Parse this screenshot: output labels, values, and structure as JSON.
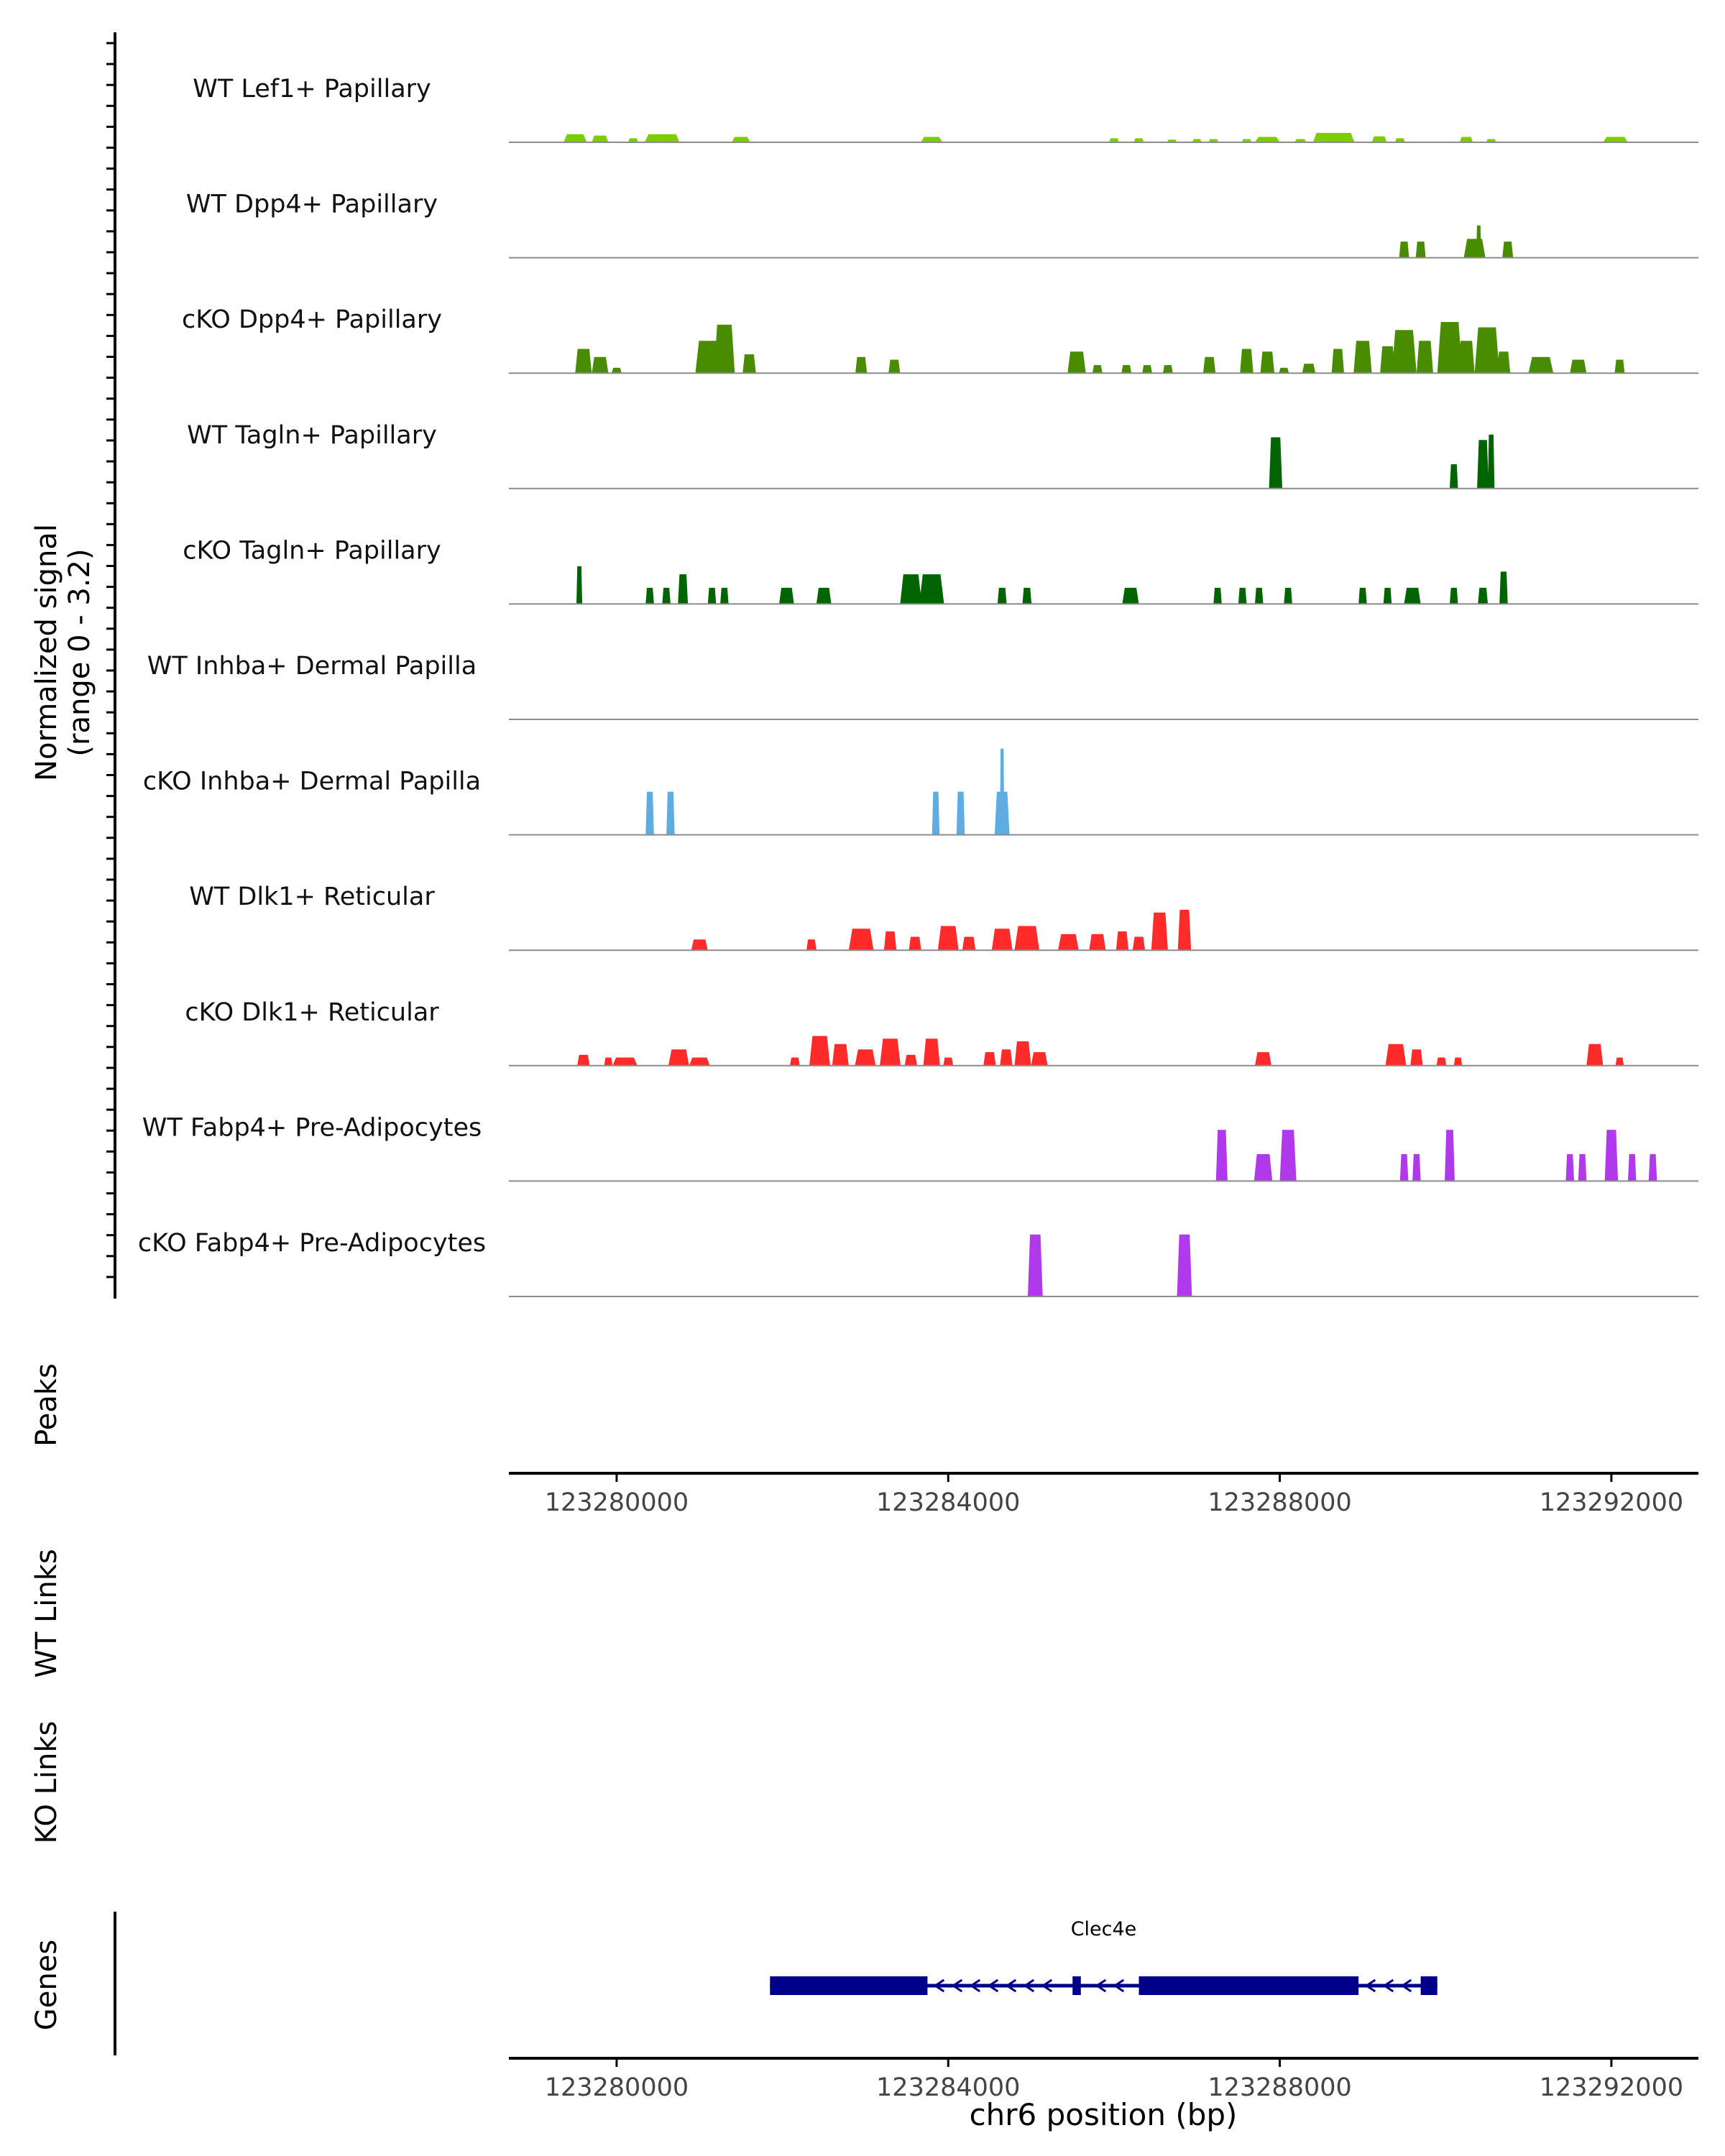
{
  "chart_data": {
    "type": "area",
    "title": "",
    "signal_axis_label_line1": "Normalized signal",
    "signal_axis_label_line2": "(range 0 - 3.2)",
    "ylim": [
      0,
      3.2
    ],
    "xlim": [
      123278700,
      123293050
    ],
    "chromosome": "chr6",
    "xlabel": "chr6 position (bp)",
    "x_ticks": [
      "123280000",
      "123284000",
      "123288000",
      "123292000"
    ],
    "x_tick_values": [
      123280000,
      123284000,
      123288000,
      123292000
    ],
    "track_labels": {
      "peaks": "Peaks",
      "wt_links": "WT Links",
      "ko_links": "KO Links",
      "genes": "Genes"
    },
    "series": [
      {
        "name": "WT Lef1+ Papillary",
        "color": "#7CCD00",
        "peaks": [
          [
            123279500,
            0.3,
            280
          ],
          [
            123279800,
            0.25,
            200
          ],
          [
            123280200,
            0.15,
            120
          ],
          [
            123280550,
            0.3,
            420
          ],
          [
            123281500,
            0.2,
            220
          ],
          [
            123283800,
            0.2,
            260
          ],
          [
            123286000,
            0.15,
            120
          ],
          [
            123286300,
            0.15,
            120
          ],
          [
            123286700,
            0.1,
            120
          ],
          [
            123287000,
            0.12,
            110
          ],
          [
            123287200,
            0.12,
            120
          ],
          [
            123287600,
            0.12,
            120
          ],
          [
            123287850,
            0.2,
            300
          ],
          [
            123288250,
            0.12,
            140
          ],
          [
            123288650,
            0.35,
            500
          ],
          [
            123289200,
            0.22,
            180
          ],
          [
            123289450,
            0.15,
            120
          ],
          [
            123290250,
            0.2,
            160
          ],
          [
            123290550,
            0.12,
            120
          ],
          [
            123292050,
            0.2,
            300
          ]
        ]
      },
      {
        "name": "WT Dpp4+ Papillary",
        "color": "#4A8C00",
        "peaks": [
          [
            123289500,
            0.6,
            120
          ],
          [
            123289700,
            0.6,
            120
          ],
          [
            123290350,
            0.7,
            260
          ],
          [
            123290400,
            1.2,
            60
          ],
          [
            123290750,
            0.6,
            130
          ]
        ]
      },
      {
        "name": "cKO Dpp4+ Papillary",
        "color": "#4A8C00",
        "peaks": [
          [
            123279600,
            0.9,
            200
          ],
          [
            123279800,
            0.6,
            200
          ],
          [
            123280000,
            0.2,
            120
          ],
          [
            123281100,
            1.2,
            300
          ],
          [
            123281300,
            1.8,
            250
          ],
          [
            123281600,
            0.7,
            160
          ],
          [
            123282950,
            0.6,
            140
          ],
          [
            123283350,
            0.5,
            140
          ],
          [
            123285550,
            0.8,
            220
          ],
          [
            123285800,
            0.3,
            120
          ],
          [
            123286150,
            0.3,
            120
          ],
          [
            123286400,
            0.3,
            120
          ],
          [
            123286650,
            0.3,
            120
          ],
          [
            123287150,
            0.6,
            150
          ],
          [
            123287600,
            0.9,
            160
          ],
          [
            123287850,
            0.8,
            170
          ],
          [
            123288050,
            0.2,
            120
          ],
          [
            123288350,
            0.35,
            160
          ],
          [
            123288700,
            0.9,
            150
          ],
          [
            123289000,
            1.2,
            220
          ],
          [
            123289300,
            1.0,
            180
          ],
          [
            123289500,
            1.6,
            300
          ],
          [
            123289750,
            1.2,
            200
          ],
          [
            123290050,
            1.9,
            300
          ],
          [
            123290250,
            1.2,
            200
          ],
          [
            123290500,
            1.7,
            300
          ],
          [
            123290700,
            0.8,
            160
          ],
          [
            123291150,
            0.6,
            300
          ],
          [
            123291600,
            0.5,
            200
          ],
          [
            123292100,
            0.5,
            120
          ]
        ]
      },
      {
        "name": "WT Tagln+ Papillary",
        "color": "#006400",
        "peaks": [
          [
            123287950,
            1.9,
            160
          ],
          [
            123290100,
            0.9,
            100
          ],
          [
            123290450,
            1.8,
            140
          ],
          [
            123290550,
            2.0,
            80
          ]
        ]
      },
      {
        "name": "cKO Tagln+ Papillary",
        "color": "#006400",
        "peaks": [
          [
            123279550,
            1.4,
            70
          ],
          [
            123280400,
            0.6,
            100
          ],
          [
            123280600,
            0.6,
            100
          ],
          [
            123280800,
            1.1,
            120
          ],
          [
            123281150,
            0.6,
            100
          ],
          [
            123281300,
            0.6,
            100
          ],
          [
            123282050,
            0.6,
            180
          ],
          [
            123282500,
            0.6,
            180
          ],
          [
            123283550,
            1.1,
            260
          ],
          [
            123283800,
            1.1,
            300
          ],
          [
            123284650,
            0.6,
            110
          ],
          [
            123284950,
            0.6,
            110
          ],
          [
            123286200,
            0.6,
            200
          ],
          [
            123287250,
            0.6,
            100
          ],
          [
            123287550,
            0.6,
            100
          ],
          [
            123287750,
            0.6,
            100
          ],
          [
            123288100,
            0.6,
            100
          ],
          [
            123289000,
            0.6,
            100
          ],
          [
            123289300,
            0.6,
            100
          ],
          [
            123289600,
            0.6,
            200
          ],
          [
            123290100,
            0.6,
            100
          ],
          [
            123290450,
            0.6,
            120
          ],
          [
            123290700,
            1.2,
            100
          ]
        ]
      },
      {
        "name": "WT Inhba+ Dermal Papilla",
        "color": "#5DADE2",
        "peaks": []
      },
      {
        "name": "cKO Inhba+ Dermal Papilla",
        "color": "#5DADE2",
        "peaks": [
          [
            123280400,
            1.6,
            100
          ],
          [
            123280650,
            1.6,
            100
          ],
          [
            123283850,
            1.6,
            90
          ],
          [
            123284150,
            1.6,
            100
          ],
          [
            123284650,
            1.6,
            180
          ],
          [
            123284650,
            3.2,
            30
          ]
        ]
      },
      {
        "name": "WT Dlk1+ Reticular",
        "color": "#FF2A2A",
        "peaks": [
          [
            123281000,
            0.4,
            200
          ],
          [
            123282350,
            0.4,
            120
          ],
          [
            123282950,
            0.8,
            300
          ],
          [
            123283300,
            0.7,
            150
          ],
          [
            123283600,
            0.5,
            150
          ],
          [
            123284000,
            0.9,
            250
          ],
          [
            123284250,
            0.5,
            160
          ],
          [
            123284650,
            0.8,
            250
          ],
          [
            123284950,
            0.9,
            300
          ],
          [
            123285450,
            0.6,
            250
          ],
          [
            123285800,
            0.6,
            200
          ],
          [
            123286100,
            0.7,
            150
          ],
          [
            123286300,
            0.5,
            150
          ],
          [
            123286550,
            1.4,
            200
          ],
          [
            123286850,
            1.5,
            160
          ]
        ]
      },
      {
        "name": "cKO Dlk1+ Reticular",
        "color": "#FF2A2A",
        "peaks": [
          [
            123279600,
            0.4,
            150
          ],
          [
            123279900,
            0.3,
            100
          ],
          [
            123280100,
            0.3,
            300
          ],
          [
            123280750,
            0.6,
            250
          ],
          [
            123281000,
            0.3,
            250
          ],
          [
            123282150,
            0.3,
            120
          ],
          [
            123282450,
            1.1,
            250
          ],
          [
            123282700,
            0.8,
            200
          ],
          [
            123283000,
            0.6,
            250
          ],
          [
            123283300,
            1.0,
            250
          ],
          [
            123283550,
            0.4,
            150
          ],
          [
            123283800,
            1.0,
            200
          ],
          [
            123284000,
            0.3,
            120
          ],
          [
            123284500,
            0.5,
            150
          ],
          [
            123284700,
            0.6,
            150
          ],
          [
            123284900,
            0.9,
            200
          ],
          [
            123285100,
            0.5,
            200
          ],
          [
            123287800,
            0.5,
            200
          ],
          [
            123289400,
            0.8,
            250
          ],
          [
            123289650,
            0.6,
            150
          ],
          [
            123289950,
            0.3,
            120
          ],
          [
            123290150,
            0.3,
            100
          ],
          [
            123291800,
            0.8,
            200
          ],
          [
            123292100,
            0.3,
            100
          ]
        ]
      },
      {
        "name": "WT Fabp4+ Pre-Adipocytes",
        "color": "#B03AEB",
        "peaks": [
          [
            123287300,
            1.9,
            140
          ],
          [
            123287800,
            1.0,
            220
          ],
          [
            123288100,
            1.9,
            200
          ],
          [
            123289500,
            1.0,
            100
          ],
          [
            123289650,
            1.0,
            100
          ],
          [
            123290050,
            1.9,
            120
          ],
          [
            123291500,
            1.0,
            100
          ],
          [
            123291650,
            1.0,
            100
          ],
          [
            123292000,
            1.9,
            160
          ],
          [
            123292250,
            1.0,
            100
          ],
          [
            123292500,
            1.0,
            100
          ]
        ]
      },
      {
        "name": "cKO Fabp4+ Pre-Adipocytes",
        "color": "#B03AEB",
        "peaks": [
          [
            123285050,
            2.3,
            180
          ],
          [
            123286850,
            2.3,
            180
          ]
        ]
      }
    ],
    "gene": {
      "name": "Clec4e",
      "strand": "-",
      "start": 123281850,
      "end": 123289900,
      "exons": [
        [
          123281850,
          123283750
        ],
        [
          123285500,
          123285600
        ],
        [
          123286300,
          123288950
        ],
        [
          123289700,
          123289900
        ]
      ]
    }
  }
}
